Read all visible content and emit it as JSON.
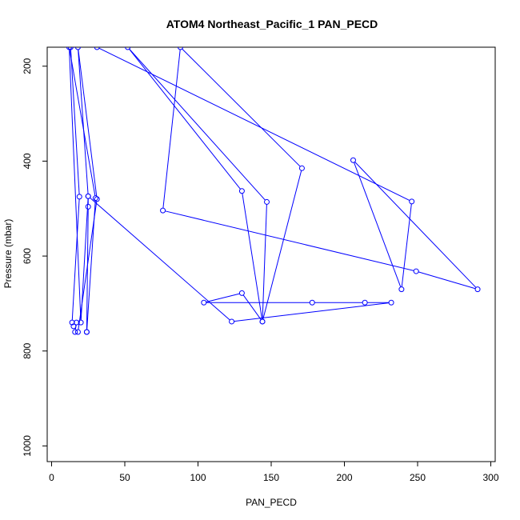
{
  "chart_data": {
    "type": "line",
    "title": "ATOM4 Northeast_Pacific_1 PAN_PECD",
    "xlabel": "PAN_PECD",
    "ylabel": "Pressure (mbar)",
    "xlim": [
      -3,
      303
    ],
    "ylim": [
      1033,
      160
    ],
    "y_reversed": true,
    "xticks": [
      0,
      50,
      100,
      150,
      200,
      250,
      300
    ],
    "yticks": [
      200,
      400,
      600,
      800,
      1000
    ],
    "grid": false,
    "line_color": "#0000ff",
    "series": [
      {
        "name": "",
        "points": [
          [
            13,
            160
          ],
          [
            19,
            475
          ],
          [
            14,
            740
          ],
          [
            15,
            748
          ],
          [
            17,
            740
          ],
          [
            16,
            760
          ],
          [
            18,
            760
          ],
          [
            31,
            480
          ],
          [
            18,
            160
          ],
          [
            25,
            474
          ],
          [
            25,
            496
          ],
          [
            24,
            760
          ],
          [
            24,
            760
          ],
          [
            30,
            478
          ],
          [
            12,
            160
          ],
          [
            20,
            740
          ],
          [
            25,
            474
          ],
          [
            123,
            738
          ],
          [
            232,
            698
          ],
          [
            214,
            698
          ],
          [
            178,
            698
          ],
          [
            104,
            698
          ],
          [
            130,
            678
          ],
          [
            144,
            738
          ],
          [
            147,
            486
          ],
          [
            52,
            160
          ],
          [
            130,
            463
          ],
          [
            144,
            738
          ],
          [
            171,
            415
          ],
          [
            88,
            160
          ],
          [
            76,
            504
          ],
          [
            249,
            632
          ],
          [
            291,
            670
          ],
          [
            206,
            398
          ],
          [
            239,
            670
          ],
          [
            246,
            485
          ],
          [
            31,
            160
          ]
        ]
      }
    ]
  }
}
